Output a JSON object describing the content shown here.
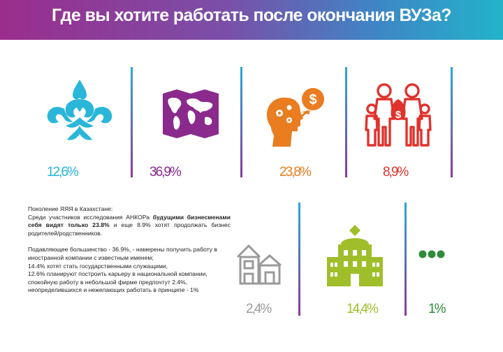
{
  "header": {
    "title": "Где вы хотите работать после окончания ВУЗа?"
  },
  "colors": {
    "teal": "#29b6d8",
    "purple": "#8a2a8c",
    "orange": "#e97d20",
    "red": "#e0332d",
    "gray": "#9a9a9a",
    "olive": "#9fbf2a",
    "green": "#2e8b3a"
  },
  "categories": [
    {
      "icon": "kazakh-ornament-icon",
      "value": "12,6%"
    },
    {
      "icon": "world-map-icon",
      "value": "36,9%"
    },
    {
      "icon": "head-money-idea-icon",
      "value": "23,8%"
    },
    {
      "icon": "family-money-icon",
      "value": "8,9%"
    },
    {
      "icon": "small-house-icon",
      "value": "2,4%"
    },
    {
      "icon": "government-building-icon",
      "value": "14,4%"
    },
    {
      "icon": "ellipsis-icon",
      "value": "1%"
    }
  ],
  "description": {
    "line1": "Поколение ЯЯЯ в Казахстане:",
    "line2_pre": "Среди участников исследования АНКОРа ",
    "line2_bold": "будущими бизнесменами себя видят только 23.8%",
    "line2_post": " и еще 8.9% хотят продолжать бизнес родителей/родственников.",
    "p2": "Подавляющее большинство - 36.9%, - намерены получить работу в иностранной компании с известным именем;",
    "p3": "14.4% хотят стать государственными служащими,",
    "p4": " 12.6% планируют построить карьеру в национальной компании, спокойную работу в небольшой фирме предпочтут 2.4%, неопределившихся и нежелающих работать в принципе - 1%"
  }
}
